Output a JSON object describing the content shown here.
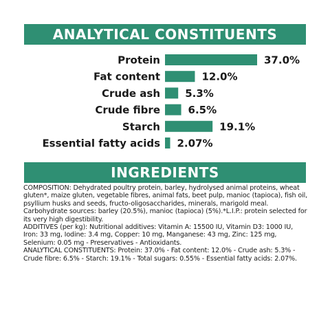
{
  "analytical_header": "ANALYTICAL CONSTITUENTS",
  "ingredients_header": "INGREDIENTS",
  "colors": {
    "accent": "#2f8f73",
    "banner_text": "#ffffff",
    "text": "#1a1a1a"
  },
  "chart_data": {
    "type": "bar",
    "orientation": "horizontal",
    "title": "ANALYTICAL CONSTITUENTS",
    "categories": [
      "Protein",
      "Fat content",
      "Crude ash",
      "Crude fibre",
      "Starch",
      "Essential fatty acids"
    ],
    "values": [
      37.0,
      12.0,
      5.3,
      6.5,
      19.1,
      2.07
    ],
    "value_labels": [
      "37.0%",
      "12.0%",
      "5.3%",
      "6.5%",
      "19.1%",
      "2.07%"
    ],
    "unit": "%",
    "xlim": [
      0,
      37.0
    ],
    "grid": false,
    "legend": "none"
  },
  "ingredients": {
    "composition": "COMPOSITION: Dehydrated poultry protein, barley, hydrolysed animal proteins, wheat gluten*, maize gluten, vegetable fibres, animal fats, beet pulp, manioc (tapioca), fish oil, psyllium husks and seeds, fructo-oligosaccharides, minerals, marigold meal. Carbohydrate sources: barley (20.5%), manioc (tapioca) (5%).*L.I.P.: protein selected for its very high digestibility.",
    "additives": " ADDITIVES (per kg): Nutritional additives: Vitamin A: 15500 IU, Vitamin D3: 1000 IU, Iron: 33 mg, Iodine: 3.4 mg, Copper: 10 mg, Manganese: 43 mg, Zinc: 125 mg, Selenium: 0.05 mg - Preservatives - Antioxidants.",
    "analytical": "ANALYTICAL CONSTITUENTS: Protein: 37.0% - Fat content: 12.0% - Crude ash: 5.3% - Crude fibre: 6.5% - Starch: 19.1% - Total sugars: 0.55% - Essential fatty acids: 2.07%."
  }
}
